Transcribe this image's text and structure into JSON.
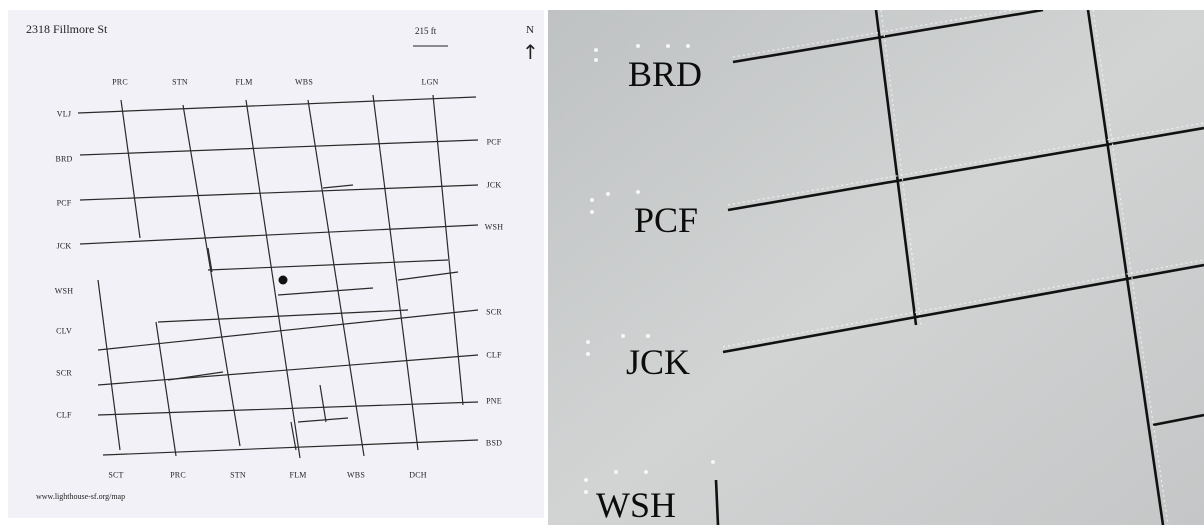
{
  "map": {
    "address": "2318 Fillmore St",
    "scale": "215 ft",
    "north": "N",
    "north_arrow": "↑",
    "url": "www.lighthouse-sf.org/map",
    "top_labels": [
      "PRC",
      "STN",
      "FLM",
      "WBS",
      "LGN"
    ],
    "bottom_labels": [
      "SCT",
      "PRC",
      "STN",
      "FLM",
      "WBS",
      "DCH"
    ],
    "left_labels": [
      "VLJ",
      "BRD",
      "PCF",
      "JCK",
      "WSH",
      "CLV",
      "SCR",
      "CLF"
    ],
    "right_labels": [
      "PCF",
      "JCK",
      "WSH",
      "SCR",
      "CLF",
      "PNE",
      "BSD"
    ]
  },
  "photo": {
    "labels": [
      "BRD",
      "PCF",
      "JCK",
      "WSH"
    ]
  },
  "colors": {
    "map_paper": "#f2f1f7",
    "map_lines": "#2a2a2a",
    "photo_paper": "#c9cbcc",
    "photo_lines": "#111111"
  }
}
